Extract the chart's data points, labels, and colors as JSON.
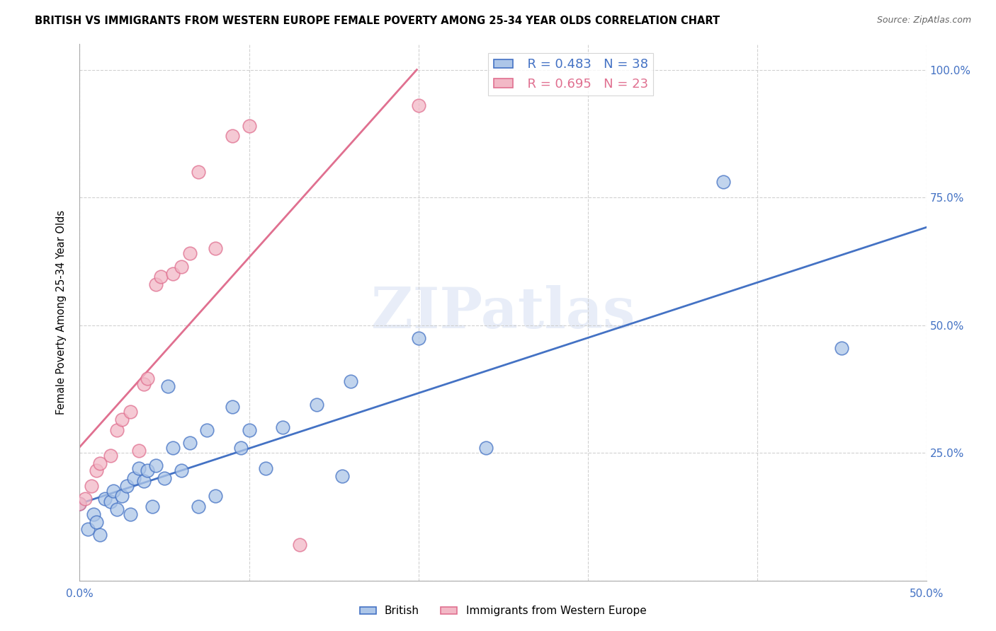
{
  "title": "BRITISH VS IMMIGRANTS FROM WESTERN EUROPE FEMALE POVERTY AMONG 25-34 YEAR OLDS CORRELATION CHART",
  "source": "Source: ZipAtlas.com",
  "ylabel": "Female Poverty Among 25-34 Year Olds",
  "xlim": [
    0.0,
    0.5
  ],
  "ylim": [
    0.0,
    1.05
  ],
  "xtick_positions": [
    0.0,
    0.1,
    0.2,
    0.3,
    0.4,
    0.5
  ],
  "xticklabels": [
    "0.0%",
    "",
    "",
    "",
    "",
    "50.0%"
  ],
  "ytick_positions": [
    0.0,
    0.25,
    0.5,
    0.75,
    1.0
  ],
  "yticklabels": [
    "",
    "25.0%",
    "50.0%",
    "75.0%",
    "100.0%"
  ],
  "british_color": "#adc6e8",
  "immigrant_color": "#f2b8c6",
  "british_line_color": "#4472c4",
  "immigrant_line_color": "#e07090",
  "watermark": "ZIPatlas",
  "british_R": 0.483,
  "british_N": 38,
  "immigrant_R": 0.695,
  "immigrant_N": 23,
  "british_x": [
    0.0,
    0.005,
    0.008,
    0.01,
    0.012,
    0.015,
    0.018,
    0.02,
    0.022,
    0.025,
    0.028,
    0.03,
    0.032,
    0.035,
    0.038,
    0.04,
    0.043,
    0.045,
    0.05,
    0.052,
    0.055,
    0.06,
    0.065,
    0.07,
    0.075,
    0.08,
    0.09,
    0.095,
    0.1,
    0.11,
    0.12,
    0.14,
    0.155,
    0.16,
    0.2,
    0.24,
    0.38,
    0.45
  ],
  "british_y": [
    0.15,
    0.1,
    0.13,
    0.115,
    0.09,
    0.16,
    0.155,
    0.175,
    0.14,
    0.165,
    0.185,
    0.13,
    0.2,
    0.22,
    0.195,
    0.215,
    0.145,
    0.225,
    0.2,
    0.38,
    0.26,
    0.215,
    0.27,
    0.145,
    0.295,
    0.165,
    0.34,
    0.26,
    0.295,
    0.22,
    0.3,
    0.345,
    0.205,
    0.39,
    0.475,
    0.26,
    0.78,
    0.455
  ],
  "immigrant_x": [
    0.0,
    0.003,
    0.007,
    0.01,
    0.012,
    0.018,
    0.022,
    0.025,
    0.03,
    0.035,
    0.038,
    0.04,
    0.045,
    0.048,
    0.055,
    0.06,
    0.065,
    0.07,
    0.08,
    0.09,
    0.1,
    0.13,
    0.2
  ],
  "immigrant_y": [
    0.15,
    0.16,
    0.185,
    0.215,
    0.23,
    0.245,
    0.295,
    0.315,
    0.33,
    0.255,
    0.385,
    0.395,
    0.58,
    0.595,
    0.6,
    0.615,
    0.64,
    0.8,
    0.65,
    0.87,
    0.89,
    0.07,
    0.93
  ]
}
